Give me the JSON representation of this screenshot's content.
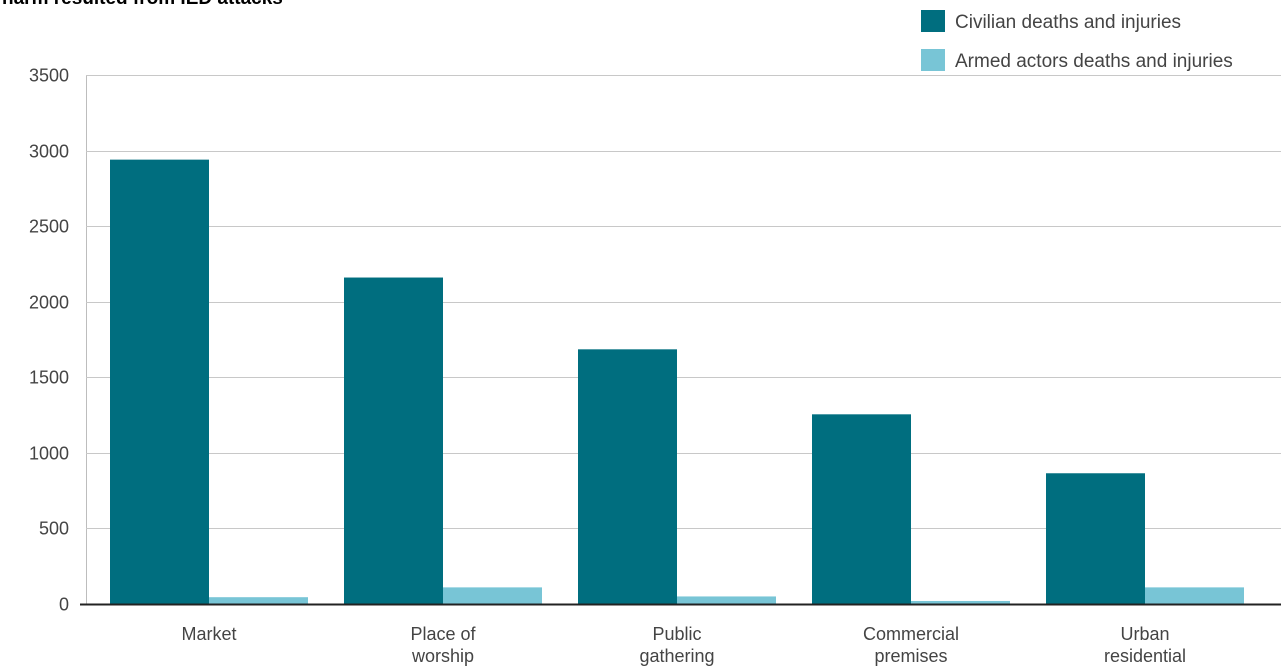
{
  "chart_data": {
    "type": "bar",
    "title": "harm resulted from IED attacks",
    "categories": [
      [
        "Market"
      ],
      [
        "Place of",
        "worship"
      ],
      [
        "Public",
        "gathering"
      ],
      [
        "Commercial",
        "premises"
      ],
      [
        "Urban",
        "residential"
      ]
    ],
    "series": [
      {
        "name": "Civilian deaths and injuries",
        "color": "#006e7f",
        "values": [
          2940,
          2160,
          1685,
          1255,
          865
        ]
      },
      {
        "name": "Armed actors deaths and injuries",
        "color": "#78c5d6",
        "values": [
          45,
          110,
          50,
          20,
          110
        ]
      }
    ],
    "ylim": [
      0,
      3500
    ],
    "yticks": [
      0,
      500,
      1000,
      1500,
      2000,
      2500,
      3000,
      3500
    ],
    "grid": true,
    "legend_position": "top-right",
    "xlabel": "",
    "ylabel": ""
  }
}
